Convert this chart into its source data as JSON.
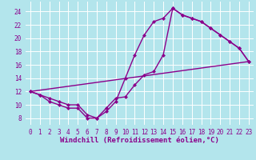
{
  "background_color": "#b3e5ec",
  "grid_color": "#ffffff",
  "line_color": "#8b008b",
  "marker": "D",
  "markersize": 2.5,
  "linewidth": 1.0,
  "xlabel": "Windchill (Refroidissement éolien,°C)",
  "xlabel_fontsize": 6.5,
  "tick_fontsize": 5.5,
  "xlim": [
    -0.5,
    23.5
  ],
  "ylim": [
    7.0,
    25.5
  ],
  "yticks": [
    8,
    10,
    12,
    14,
    16,
    18,
    20,
    22,
    24
  ],
  "xticks": [
    0,
    1,
    2,
    3,
    4,
    5,
    6,
    7,
    8,
    9,
    10,
    11,
    12,
    13,
    14,
    15,
    16,
    17,
    18,
    19,
    20,
    21,
    22,
    23
  ],
  "line1_x": [
    0,
    1,
    2,
    3,
    4,
    5,
    6,
    7,
    8,
    9,
    10,
    11,
    12,
    13,
    14,
    15,
    16,
    17,
    18,
    19,
    20,
    21,
    22,
    23
  ],
  "line1_y": [
    12,
    11.5,
    11,
    10.5,
    10,
    10,
    8.5,
    8,
    9.5,
    11,
    11.2,
    13,
    14.5,
    15,
    17.5,
    24.5,
    23.5,
    23,
    22.5,
    21.5,
    20.5,
    19.5,
    18.5,
    16.5
  ],
  "line2_x": [
    0,
    1,
    2,
    3,
    4,
    5,
    6,
    7,
    8,
    9,
    10,
    11,
    12,
    13,
    14,
    15,
    16,
    17,
    18,
    19,
    20,
    21,
    22,
    23
  ],
  "line2_y": [
    12,
    11.5,
    10.5,
    10,
    9.5,
    9.5,
    8,
    8,
    9,
    10.5,
    14,
    17.5,
    20.5,
    22.5,
    23,
    24.5,
    23.5,
    23,
    22.5,
    21.5,
    20.5,
    19.5,
    18.5,
    16.5
  ],
  "line3_x": [
    0,
    23
  ],
  "line3_y": [
    12,
    16.5
  ]
}
